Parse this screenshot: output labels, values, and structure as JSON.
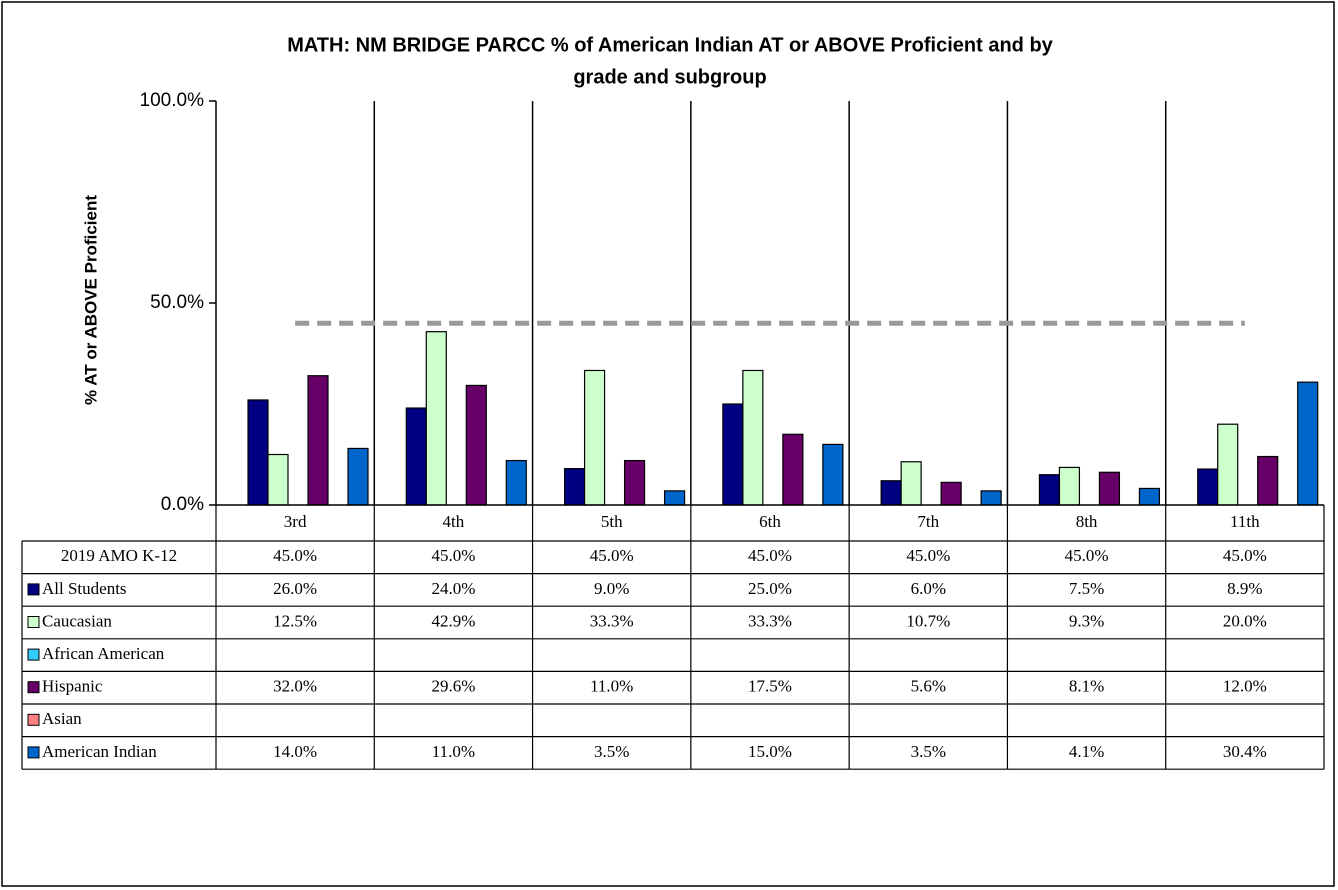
{
  "chart_data": {
    "type": "bar",
    "title": [
      "MATH: NM BRIDGE PARCC % of American Indian AT or ABOVE Proficient and  by",
      "grade and subgroup"
    ],
    "y_label": "% AT or ABOVE Proficient",
    "categories": [
      "3rd",
      "4th",
      "5th",
      "6th",
      "7th",
      "8th",
      "11th"
    ],
    "ylim": [
      0,
      100
    ],
    "yticks": [
      {
        "value": 0,
        "label": "0.0%"
      },
      {
        "value": 50,
        "label": "50.0%"
      },
      {
        "value": 100,
        "label": "100.0%"
      }
    ],
    "series": [
      {
        "name": "2019 AMO K-12",
        "type": "line",
        "color": "#999999",
        "values": [
          45,
          45,
          45,
          45,
          45,
          45,
          45
        ],
        "value_labels": [
          "45.0%",
          "45.0%",
          "45.0%",
          "45.0%",
          "45.0%",
          "45.0%",
          "45.0%"
        ]
      },
      {
        "name": "All Students",
        "color": "#000080",
        "values": [
          26,
          24,
          9,
          25,
          6,
          7.5,
          8.9
        ],
        "value_labels": [
          "26.0%",
          "24.0%",
          "9.0%",
          "25.0%",
          "6.0%",
          "7.5%",
          "8.9%"
        ]
      },
      {
        "name": "Caucasian",
        "color": "#ccffcc",
        "values": [
          12.5,
          42.9,
          33.3,
          33.3,
          10.7,
          9.3,
          20
        ],
        "value_labels": [
          "12.5%",
          "42.9%",
          "33.3%",
          "33.3%",
          "10.7%",
          "9.3%",
          "20.0%"
        ]
      },
      {
        "name": "African American",
        "color": "#33ccff",
        "values": [
          null,
          null,
          null,
          null,
          null,
          null,
          null
        ],
        "value_labels": [
          null,
          null,
          null,
          null,
          null,
          null,
          null
        ]
      },
      {
        "name": "Hispanic",
        "color": "#660066",
        "values": [
          32,
          29.6,
          11,
          17.5,
          5.6,
          8.1,
          12
        ],
        "value_labels": [
          "32.0%",
          "29.6%",
          "11.0%",
          "17.5%",
          "5.6%",
          "8.1%",
          "12.0%"
        ]
      },
      {
        "name": "Asian",
        "color": "#ff8080",
        "values": [
          null,
          null,
          null,
          null,
          null,
          null,
          null
        ],
        "value_labels": [
          null,
          null,
          null,
          null,
          null,
          null,
          null
        ]
      },
      {
        "name": "American Indian",
        "color": "#0066cc",
        "values": [
          14,
          11,
          3.5,
          15,
          3.5,
          4.1,
          30.4
        ],
        "value_labels": [
          "14.0%",
          "11.0%",
          "3.5%",
          "15.0%",
          "3.5%",
          "4.1%",
          "30.4%"
        ]
      }
    ]
  }
}
